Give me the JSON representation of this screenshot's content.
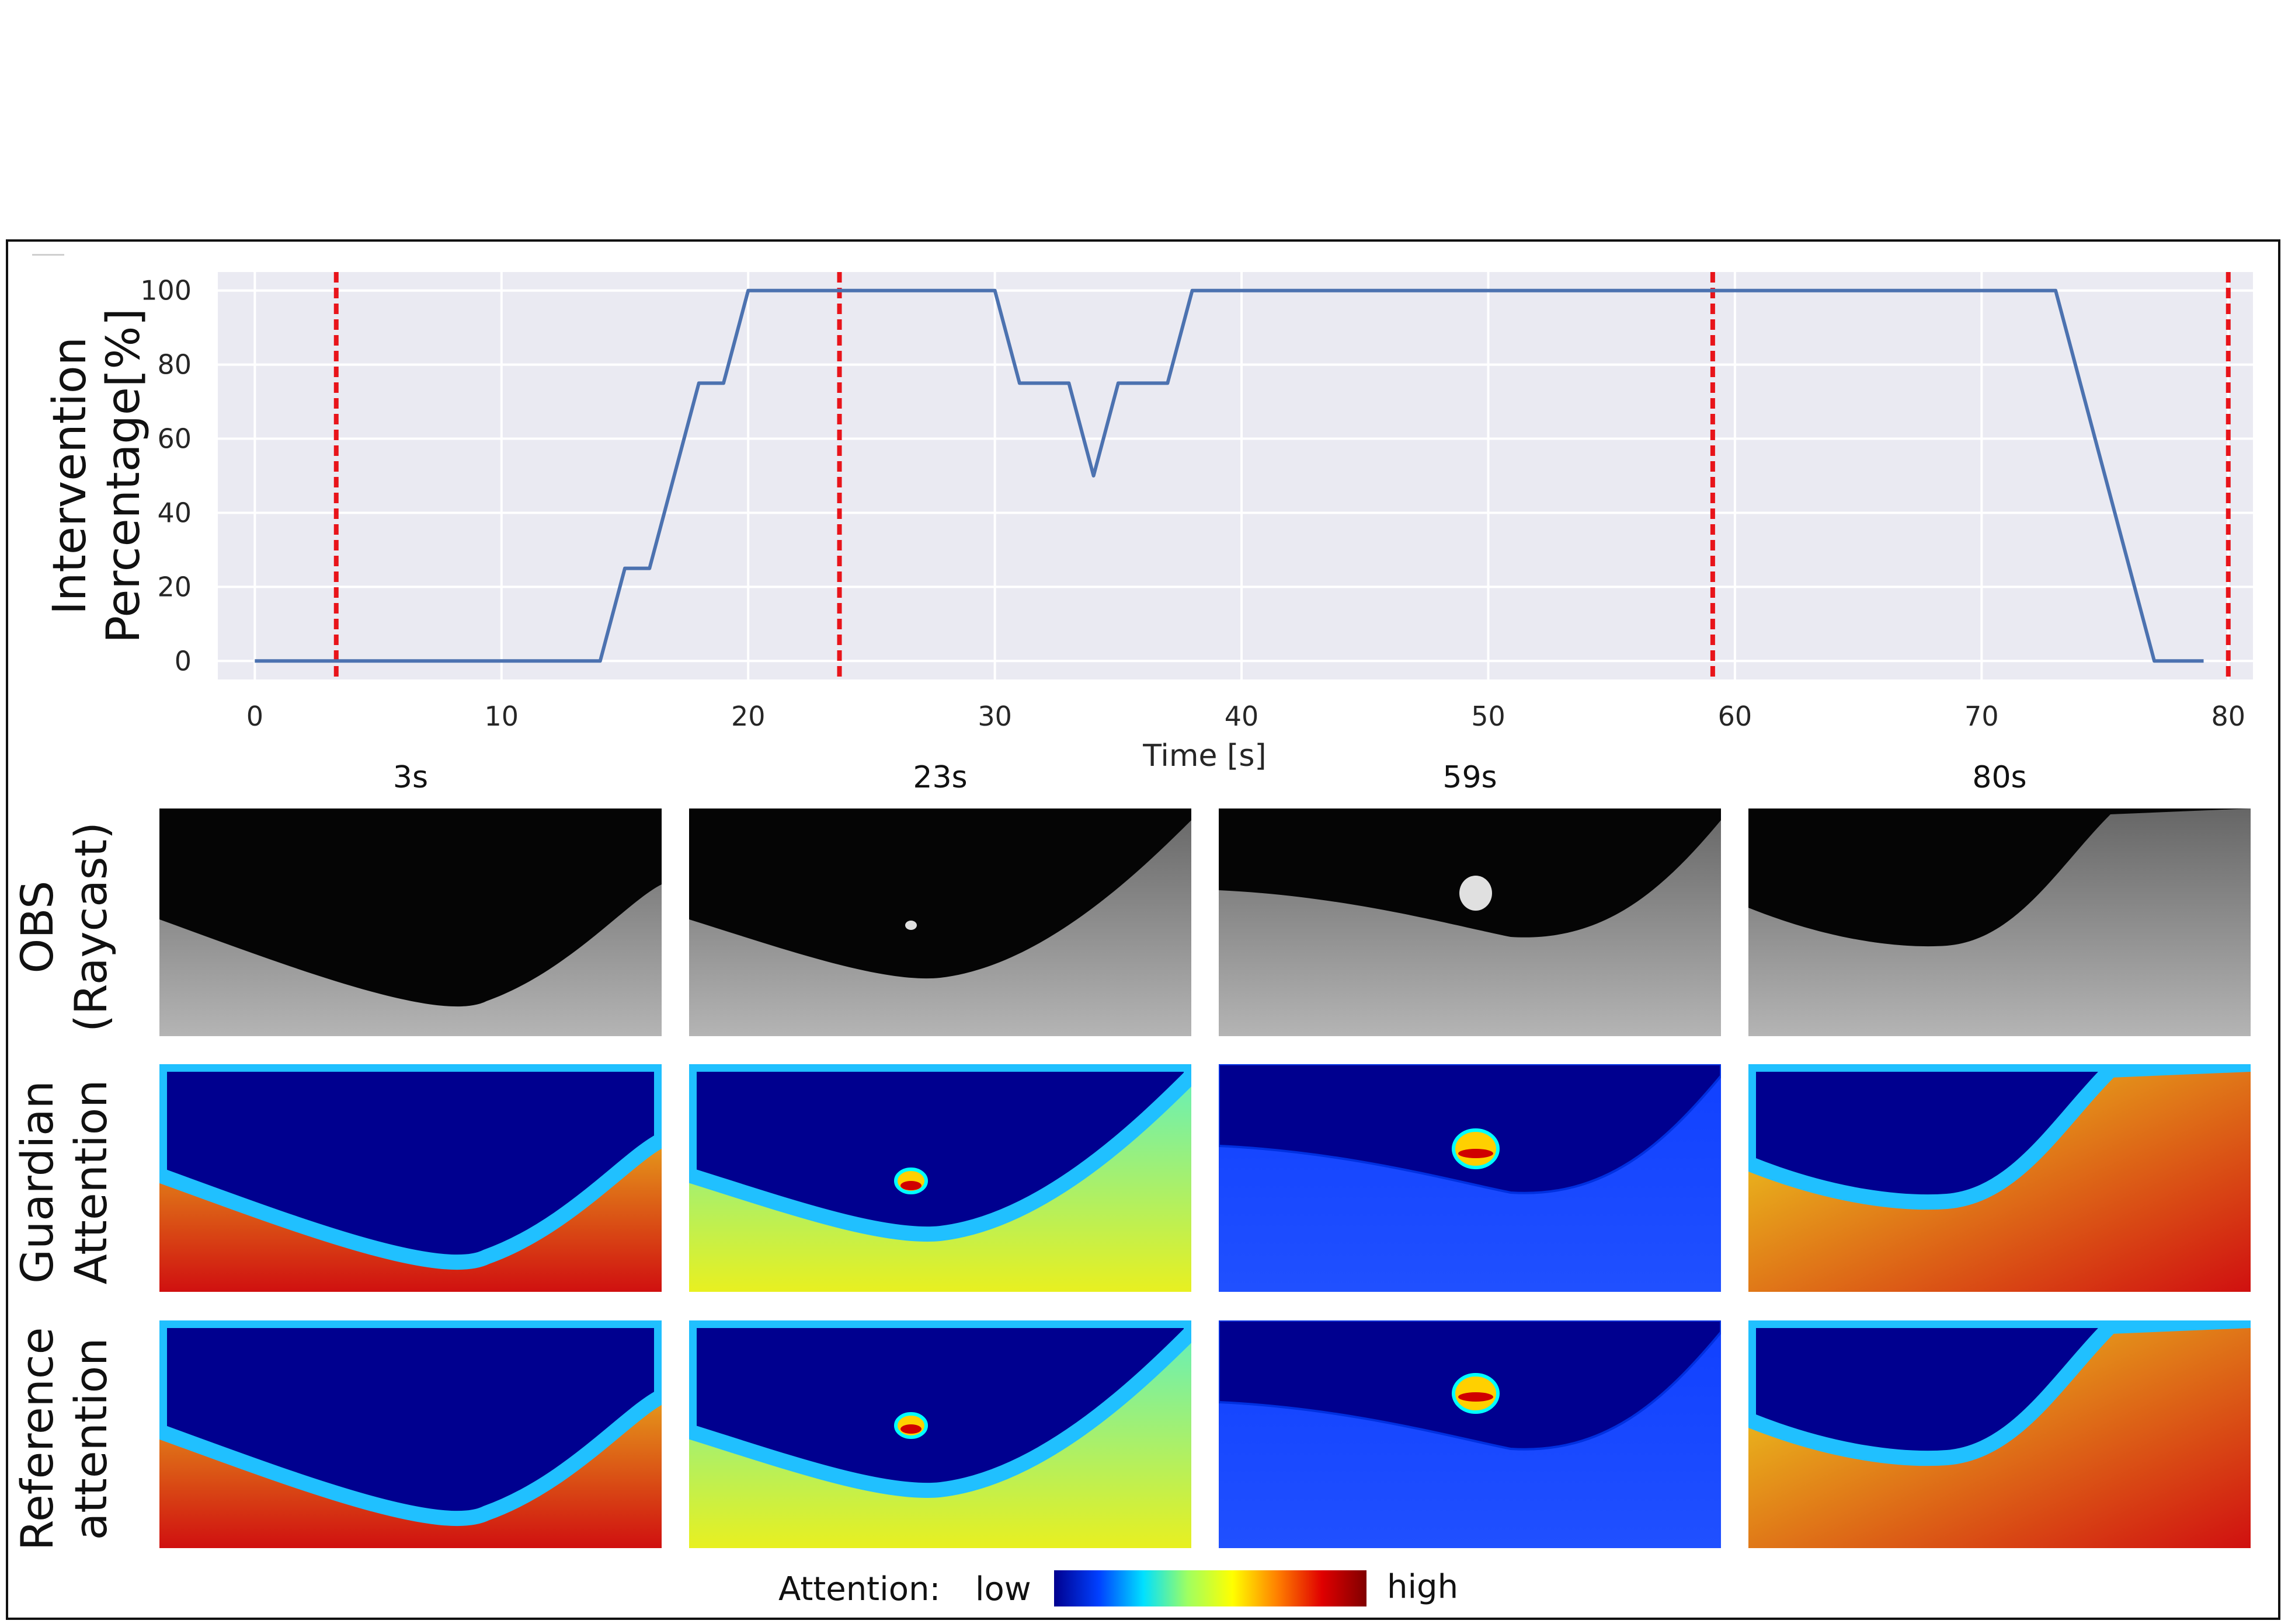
{
  "chart_data": {
    "type": "line",
    "title": "",
    "xlabel": "Time [s]",
    "ylabel": "Intervention\nPercentage[%]",
    "xlim": [
      -1.5,
      81
    ],
    "ylim": [
      -5,
      105
    ],
    "xticks": [
      0,
      10,
      20,
      30,
      40,
      50,
      60,
      70,
      80
    ],
    "yticks": [
      0,
      20,
      40,
      60,
      80,
      100
    ],
    "grid": true,
    "series": [
      {
        "color": "#4c72b0",
        "x": [
          0,
          14,
          15,
          16,
          18,
          19,
          20,
          30,
          31,
          33,
          34,
          35,
          37,
          38,
          73,
          77,
          79
        ],
        "y": [
          0,
          0,
          25,
          25,
          75,
          75,
          100,
          100,
          75,
          75,
          50,
          75,
          75,
          100,
          100,
          0,
          0
        ]
      }
    ],
    "markers": {
      "type": "vertical-dashed-line",
      "color": "#e8141a",
      "x": [
        3.3,
        23.7,
        59.1,
        80
      ]
    }
  },
  "columns": [
    "3s",
    "23s",
    "59s",
    "80s"
  ],
  "rows": [
    {
      "label": "OBS\n(Raycast)",
      "kind": "grayscale"
    },
    {
      "label": "Guardian\nAttention",
      "kind": "heatmap"
    },
    {
      "label": "Reference\nattention",
      "kind": "heatmap"
    }
  ],
  "colorbar": {
    "label": "Attention:",
    "low": "low",
    "high": "high",
    "colors": [
      "#00008f",
      "#0040ff",
      "#00e0ff",
      "#a0ff60",
      "#ffff00",
      "#ff8000",
      "#e00000",
      "#800000"
    ]
  }
}
